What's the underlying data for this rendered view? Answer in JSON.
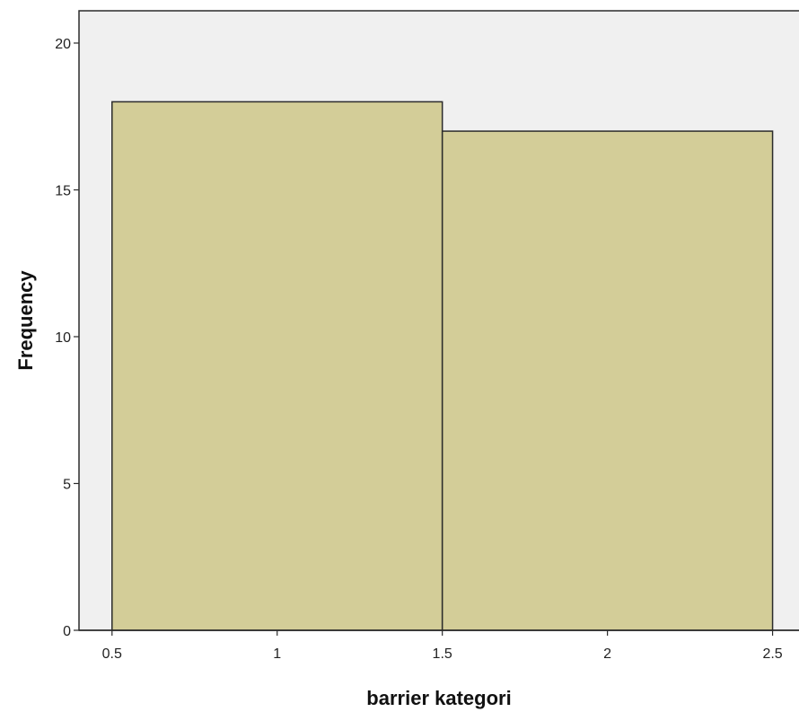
{
  "chart_data": {
    "type": "bar",
    "subtype": "histogram",
    "bins": [
      {
        "x0": 0.5,
        "x1": 1.5,
        "value": 18
      },
      {
        "x0": 1.5,
        "x1": 2.5,
        "value": 17
      }
    ],
    "xlabel": "barrier kategori",
    "ylabel": "Frequency",
    "xlim": [
      0.4,
      2.58
    ],
    "ylim": [
      0,
      21.1
    ],
    "xticks": [
      0.5,
      1,
      1.5,
      2,
      2.5
    ],
    "xtick_labels": [
      "0.5",
      "1",
      "1.5",
      "2",
      "2.5"
    ],
    "yticks": [
      0,
      5,
      10,
      15,
      20
    ],
    "ytick_labels": [
      "0",
      "5",
      "10",
      "15",
      "20"
    ],
    "grid": false,
    "colors": {
      "plot_background": "#f0f0f0",
      "bar_fill": "#d3cd98",
      "bar_stroke": "#2b2b2b",
      "axis": "#2b2b2b"
    }
  }
}
